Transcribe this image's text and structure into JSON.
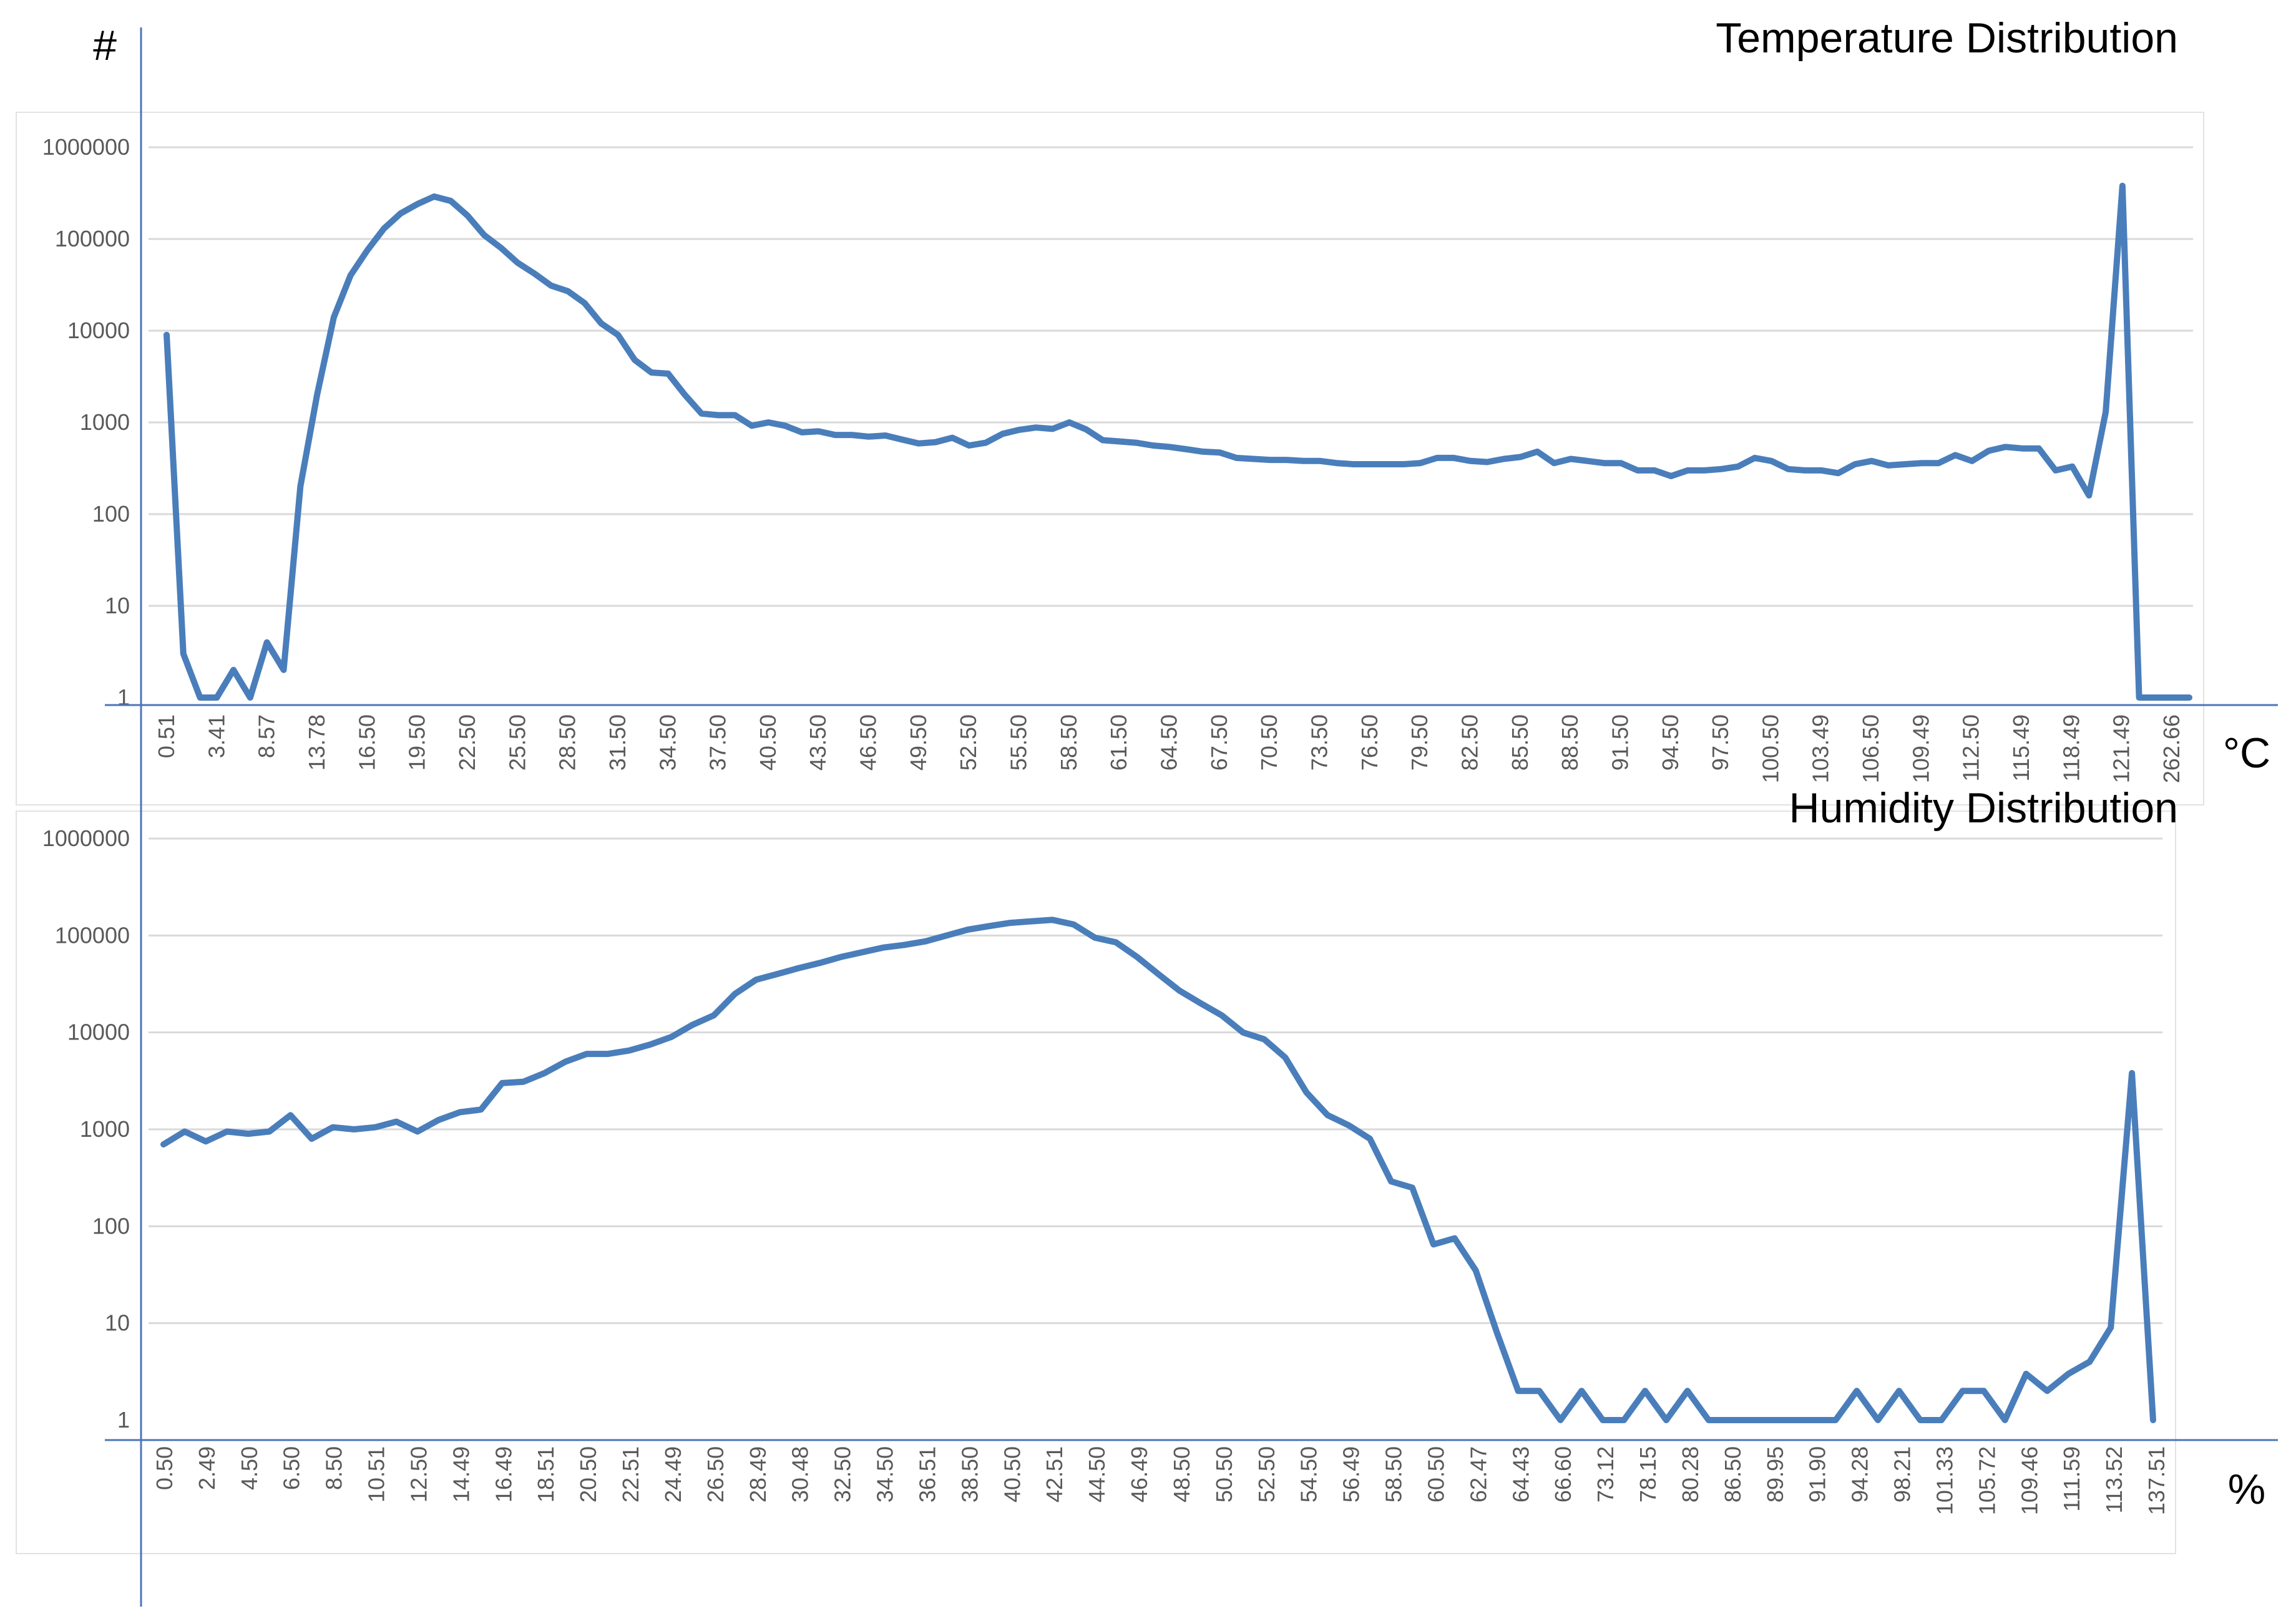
{
  "page": {
    "y_unit": "#"
  },
  "chart_data": [
    {
      "type": "line",
      "title": "Temperature Distribution",
      "xlabel": "°C",
      "ylabel": "#",
      "y_scale": "log",
      "ylim": [
        1,
        1000000
      ],
      "yticks": [
        "1",
        "10",
        "100",
        "1000",
        "10000",
        "100000",
        "1000000"
      ],
      "grid": true,
      "color": "#4a7ebb",
      "x_tick_labels": [
        "0.51",
        "3.41",
        "8.57",
        "13.78",
        "16.50",
        "19.50",
        "22.50",
        "25.50",
        "28.50",
        "31.50",
        "34.50",
        "37.50",
        "40.50",
        "43.50",
        "46.50",
        "49.50",
        "52.50",
        "55.50",
        "58.50",
        "61.50",
        "64.50",
        "67.50",
        "70.50",
        "73.50",
        "76.50",
        "79.50",
        "82.50",
        "85.50",
        "88.50",
        "91.50",
        "94.50",
        "97.50",
        "100.50",
        "103.49",
        "106.50",
        "109.49",
        "112.50",
        "115.49",
        "118.49",
        "121.49",
        "262.66"
      ],
      "values": [
        9000,
        3,
        1,
        1,
        2,
        1,
        4,
        2,
        200,
        2000,
        14000,
        40000,
        75000,
        130000,
        190000,
        240000,
        290000,
        260000,
        180000,
        110000,
        80000,
        55000,
        42000,
        31000,
        27000,
        20000,
        12000,
        9000,
        4800,
        3500,
        3400,
        2000,
        1250,
        1200,
        1200,
        920,
        1000,
        920,
        780,
        800,
        730,
        730,
        700,
        720,
        650,
        590,
        610,
        680,
        560,
        600,
        750,
        830,
        880,
        850,
        1000,
        840,
        640,
        620,
        600,
        560,
        540,
        510,
        480,
        470,
        410,
        400,
        390,
        390,
        380,
        380,
        360,
        350,
        350,
        350,
        350,
        360,
        410,
        410,
        380,
        370,
        400,
        420,
        480,
        360,
        400,
        380,
        360,
        360,
        300,
        300,
        260,
        300,
        300,
        310,
        330,
        410,
        380,
        310,
        300,
        300,
        280,
        350,
        380,
        340,
        350,
        360,
        360,
        440,
        380,
        490,
        540,
        520,
        520,
        300,
        330,
        160,
        1300,
        380000,
        1,
        1,
        1,
        1
      ]
    },
    {
      "type": "line",
      "title": "Humidity Distribution",
      "xlabel": "%",
      "ylabel": "",
      "y_scale": "log",
      "ylim": [
        1,
        1000000
      ],
      "yticks": [
        "1",
        "10",
        "100",
        "1000",
        "10000",
        "100000",
        "1000000"
      ],
      "grid": true,
      "color": "#4a7ebb",
      "x_tick_labels": [
        "0.50",
        "2.49",
        "4.50",
        "6.50",
        "8.50",
        "10.51",
        "12.50",
        "14.49",
        "16.49",
        "18.51",
        "20.50",
        "22.51",
        "24.49",
        "26.50",
        "28.49",
        "30.48",
        "32.50",
        "34.50",
        "36.51",
        "38.50",
        "40.50",
        "42.51",
        "44.50",
        "46.49",
        "48.50",
        "50.50",
        "52.50",
        "54.50",
        "56.49",
        "58.50",
        "60.50",
        "62.47",
        "64.43",
        "66.60",
        "73.12",
        "78.15",
        "80.28",
        "86.50",
        "89.95",
        "91.90",
        "94.28",
        "98.21",
        "101.33",
        "105.72",
        "109.46",
        "111.59",
        "113.52",
        "137.51"
      ],
      "values": [
        700,
        950,
        750,
        950,
        900,
        950,
        1400,
        800,
        1050,
        1000,
        1050,
        1200,
        950,
        1250,
        1500,
        1600,
        3000,
        3100,
        3800,
        5000,
        6000,
        6000,
        6500,
        7500,
        9000,
        12000,
        15000,
        25000,
        35000,
        40000,
        46000,
        52000,
        60000,
        67000,
        75000,
        80000,
        87000,
        100000,
        115000,
        125000,
        135000,
        140000,
        145000,
        130000,
        95000,
        85000,
        60000,
        40000,
        27000,
        20000,
        15000,
        10000,
        8500,
        5500,
        2400,
        1400,
        1100,
        800,
        290,
        250,
        65,
        75,
        35,
        8,
        2,
        2,
        1,
        2,
        1,
        1,
        2,
        1,
        2,
        1,
        1,
        1,
        1,
        1,
        1,
        1,
        2,
        1,
        2,
        1,
        1,
        2,
        2,
        1,
        3,
        2,
        3,
        4,
        9,
        3800,
        1
      ]
    }
  ]
}
